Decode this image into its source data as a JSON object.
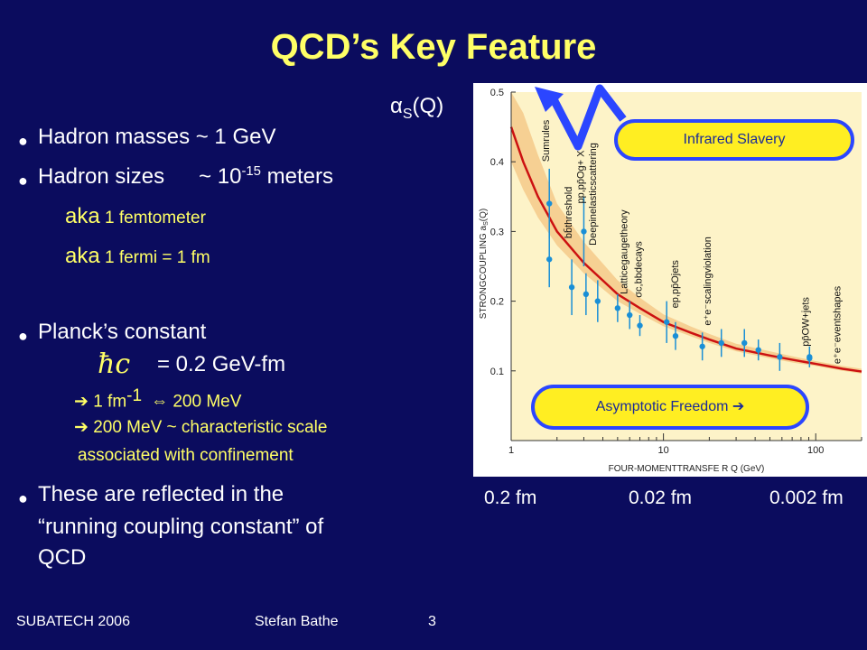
{
  "title": "QCD’s Key Feature",
  "alpha_label": {
    "symbol": "α",
    "sub": "S",
    "arg": "(Q)"
  },
  "bullets": {
    "b1": "Hadron masses ~ 1 GeV",
    "b2_pre": "Hadron sizes",
    "b2_val": "~ 10",
    "b2_exp": "-15",
    "b2_unit": " meters",
    "aka1_word": "aka",
    "aka1_text": " 1 femtometer",
    "aka2_word": "aka",
    "aka2_text": " 1 fermi = 1 fm",
    "planck": "Planck’s constant",
    "hbar": "ħc",
    "planck_val": "= 0.2 GeV-fm",
    "arrow_glyph": "➔",
    "sub1_pre": " 1 fm",
    "sub1_exp": "-1",
    "sub1_equiv": "⇔",
    "sub1_post": " 200 MeV",
    "sub2_line1": " 200 MeV  ~ characteristic scale",
    "sub2_line2": "associated  with   confinement",
    "last_line1": "These are reflected in the",
    "last_line2": "“running coupling constant” of",
    "last_line3": "QCD"
  },
  "under_labels": [
    "0.2 fm",
    "0.02 fm",
    "0.002 fm"
  ],
  "footer": {
    "left": "SUBATECH 2006",
    "mid": "Stefan Bathe",
    "page": "3"
  },
  "callouts": {
    "infrared": "Infrared Slavery",
    "asymptotic": "Asymptotic Freedom",
    "asym_arrow": "➔"
  },
  "colors": {
    "background": "#0b0c5e",
    "title": "#ffff66",
    "band": "#f5c98a",
    "curve": "#cc1111",
    "points": "#1a8fd6"
  },
  "chart_data": {
    "type": "scatter",
    "xscale": "log",
    "xlim": [
      1,
      200
    ],
    "ylim": [
      0,
      0.5
    ],
    "xlabel": "FOUR-MOMENTTRANSFE R  Q (GeV)",
    "ylabel": "STRONGCOUPLING   a",
    "ylabel_sub": "S",
    "ylabel_arg": "(Q)",
    "xticks": [
      1,
      10,
      100
    ],
    "xtick_labels": [
      "1",
      "10",
      "100"
    ],
    "yticks": [
      0.1,
      0.2,
      0.3,
      0.4,
      0.5
    ],
    "ytick_labels": [
      "0.1",
      "0.2",
      "0.3",
      "0.4",
      "0.5"
    ],
    "curve": [
      [
        1.0,
        0.45
      ],
      [
        1.2,
        0.4
      ],
      [
        1.5,
        0.35
      ],
      [
        2,
        0.3
      ],
      [
        3,
        0.255
      ],
      [
        5,
        0.21
      ],
      [
        7,
        0.19
      ],
      [
        10,
        0.17
      ],
      [
        15,
        0.155
      ],
      [
        20,
        0.145
      ],
      [
        30,
        0.132
      ],
      [
        50,
        0.122
      ],
      [
        70,
        0.116
      ],
      [
        100,
        0.11
      ],
      [
        150,
        0.103
      ],
      [
        200,
        0.099
      ]
    ],
    "band_low": [
      [
        1.0,
        0.4
      ],
      [
        1.2,
        0.36
      ],
      [
        1.5,
        0.32
      ],
      [
        2,
        0.28
      ],
      [
        3,
        0.24
      ],
      [
        5,
        0.2
      ],
      [
        7,
        0.182
      ],
      [
        10,
        0.164
      ],
      [
        15,
        0.15
      ],
      [
        20,
        0.14
      ],
      [
        30,
        0.128
      ],
      [
        50,
        0.118
      ],
      [
        70,
        0.112
      ],
      [
        100,
        0.107
      ],
      [
        150,
        0.1
      ],
      [
        200,
        0.096
      ]
    ],
    "band_high": [
      [
        1.0,
        0.52
      ],
      [
        1.2,
        0.47
      ],
      [
        1.5,
        0.41
      ],
      [
        2,
        0.34
      ],
      [
        3,
        0.285
      ],
      [
        5,
        0.23
      ],
      [
        7,
        0.205
      ],
      [
        10,
        0.181
      ],
      [
        15,
        0.164
      ],
      [
        20,
        0.153
      ],
      [
        30,
        0.139
      ],
      [
        50,
        0.128
      ],
      [
        70,
        0.121
      ],
      [
        100,
        0.114
      ],
      [
        150,
        0.107
      ],
      [
        200,
        0.103
      ]
    ],
    "points": [
      {
        "x": 1.78,
        "y": 0.34,
        "err": 0.05
      },
      {
        "x": 1.78,
        "y": 0.26,
        "err": 0.04
      },
      {
        "x": 2.5,
        "y": 0.22,
        "err": 0.04
      },
      {
        "x": 3.0,
        "y": 0.3,
        "err": 0.05
      },
      {
        "x": 3.1,
        "y": 0.21,
        "err": 0.03
      },
      {
        "x": 3.7,
        "y": 0.2,
        "err": 0.03
      },
      {
        "x": 5.0,
        "y": 0.19,
        "err": 0.02
      },
      {
        "x": 6.0,
        "y": 0.18,
        "err": 0.02
      },
      {
        "x": 7.0,
        "y": 0.165,
        "err": 0.015
      },
      {
        "x": 10.5,
        "y": 0.17,
        "err": 0.03
      },
      {
        "x": 12,
        "y": 0.15,
        "err": 0.02
      },
      {
        "x": 18,
        "y": 0.135,
        "err": 0.02
      },
      {
        "x": 24,
        "y": 0.14,
        "err": 0.02
      },
      {
        "x": 34,
        "y": 0.14,
        "err": 0.02
      },
      {
        "x": 42,
        "y": 0.13,
        "err": 0.015
      },
      {
        "x": 58,
        "y": 0.12,
        "err": 0.02
      },
      {
        "x": 91,
        "y": 0.12,
        "err": 0.015
      },
      {
        "x": 91,
        "y": 0.118,
        "err": 0.004
      }
    ],
    "annotations": [
      "Sumrules",
      "bb̄threshold",
      "pp,pp̄Og+ X",
      "Deepinelasticscattering",
      "Latticegaugetheory",
      "σc,bbdecays",
      "ep,pp̄Ojets",
      "e⁺e⁻scalingviolation",
      "pp̄OW+jets",
      "e⁺e⁻eventshapes"
    ]
  }
}
